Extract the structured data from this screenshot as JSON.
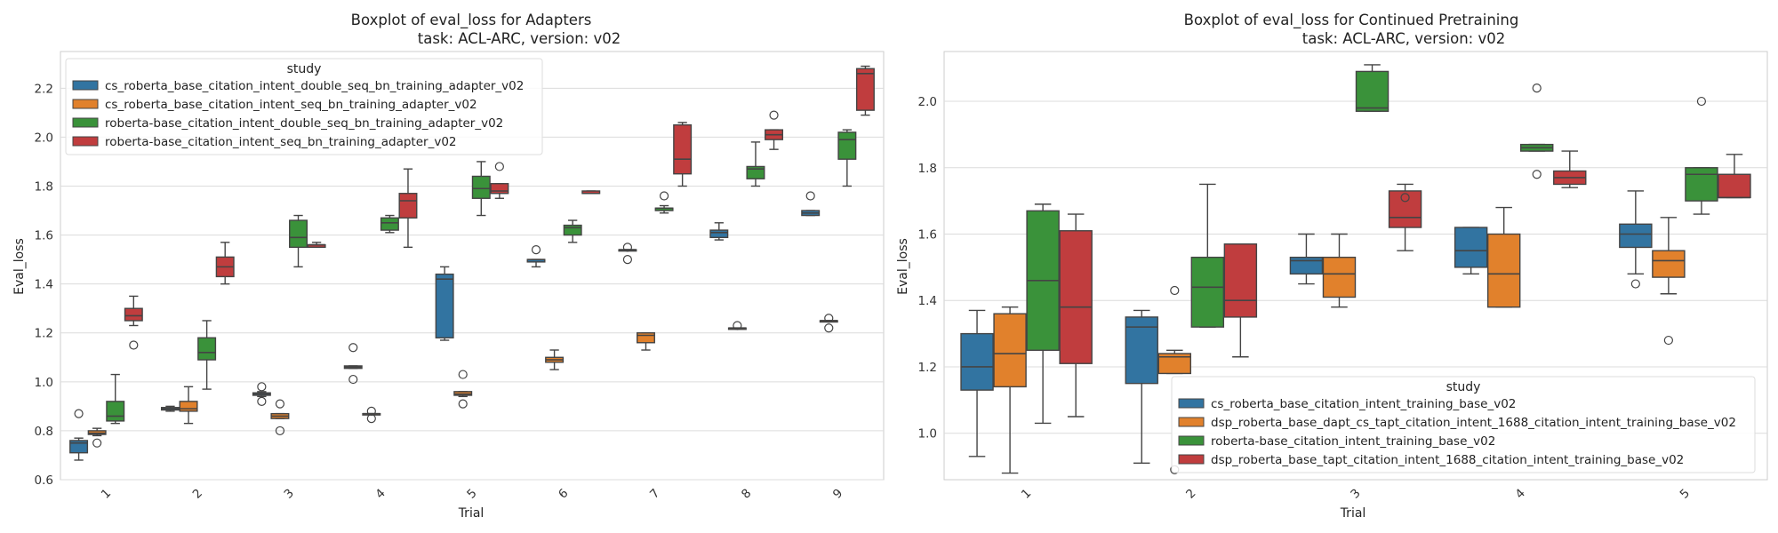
{
  "colors": {
    "s0": "#3274a1",
    "s1": "#e1812c",
    "s2": "#3a923a",
    "s3": "#c03d3e"
  },
  "chart_data": [
    {
      "type": "box",
      "title_line1": "Boxplot of eval_loss for Adapters",
      "title_line2": "task: ACL-ARC, version: v02",
      "xlabel": "Trial",
      "ylabel": "Eval_loss",
      "ylim": [
        0.6,
        2.35
      ],
      "yticks": [
        "0.6",
        "0.8",
        "1.0",
        "1.2",
        "1.4",
        "1.6",
        "1.8",
        "2.0",
        "2.2"
      ],
      "categories": [
        "1",
        "2",
        "3",
        "4",
        "5",
        "6",
        "7",
        "8",
        "9"
      ],
      "grid": true,
      "legend": {
        "title": "study",
        "position": "upper-left",
        "labels": [
          "cs_roberta_base_citation_intent_double_seq_bn_training_adapter_v02",
          "cs_roberta_base_citation_intent_seq_bn_training_adapter_v02",
          "roberta-base_citation_intent_double_seq_bn_training_adapter_v02",
          "roberta-base_citation_intent_seq_bn_training_adapter_v02"
        ]
      },
      "series": [
        {
          "color_key": "s0",
          "boxes": [
            {
              "min": 0.68,
              "q1": 0.71,
              "med": 0.75,
              "q3": 0.76,
              "max": 0.77,
              "fliers": [
                0.87
              ]
            },
            {
              "min": 0.88,
              "q1": 0.885,
              "med": 0.89,
              "q3": 0.895,
              "max": 0.9,
              "fliers": []
            },
            {
              "min": 0.94,
              "q1": 0.945,
              "med": 0.95,
              "q3": 0.955,
              "max": 0.96,
              "fliers": [
                0.92,
                0.98
              ]
            },
            {
              "min": 1.055,
              "q1": 1.055,
              "med": 1.06,
              "q3": 1.065,
              "max": 1.065,
              "fliers": [
                1.01,
                1.14
              ]
            },
            {
              "min": 1.17,
              "q1": 1.18,
              "med": 1.42,
              "q3": 1.44,
              "max": 1.47,
              "fliers": []
            },
            {
              "min": 1.47,
              "q1": 1.49,
              "med": 1.5,
              "q3": 1.5,
              "max": 1.5,
              "fliers": [
                1.54
              ]
            },
            {
              "min": 1.54,
              "q1": 1.54,
              "med": 1.54,
              "q3": 1.54,
              "max": 1.54,
              "fliers": [
                1.5,
                1.55
              ]
            },
            {
              "min": 1.58,
              "q1": 1.59,
              "med": 1.61,
              "q3": 1.62,
              "max": 1.65,
              "fliers": []
            },
            {
              "min": 1.68,
              "q1": 1.68,
              "med": 1.69,
              "q3": 1.7,
              "max": 1.7,
              "fliers": [
                1.76
              ]
            }
          ]
        },
        {
          "color_key": "s1",
          "boxes": [
            {
              "min": 0.78,
              "q1": 0.785,
              "med": 0.79,
              "q3": 0.8,
              "max": 0.81,
              "fliers": [
                0.75
              ]
            },
            {
              "min": 0.83,
              "q1": 0.88,
              "med": 0.89,
              "q3": 0.92,
              "max": 0.98,
              "fliers": []
            },
            {
              "min": 0.85,
              "q1": 0.85,
              "med": 0.86,
              "q3": 0.87,
              "max": 0.87,
              "fliers": [
                0.8,
                0.91
              ]
            },
            {
              "min": 0.87,
              "q1": 0.87,
              "med": 0.87,
              "q3": 0.87,
              "max": 0.87,
              "fliers": [
                0.85,
                0.88
              ]
            },
            {
              "min": 0.94,
              "q1": 0.945,
              "med": 0.95,
              "q3": 0.96,
              "max": 0.96,
              "fliers": [
                0.91,
                1.03
              ]
            },
            {
              "min": 1.05,
              "q1": 1.08,
              "med": 1.09,
              "q3": 1.1,
              "max": 1.13,
              "fliers": []
            },
            {
              "min": 1.13,
              "q1": 1.16,
              "med": 1.19,
              "q3": 1.2,
              "max": 1.2,
              "fliers": []
            },
            {
              "min": 1.22,
              "q1": 1.22,
              "med": 1.22,
              "q3": 1.22,
              "max": 1.22,
              "fliers": [
                1.23
              ]
            },
            {
              "min": 1.25,
              "q1": 1.25,
              "med": 1.25,
              "q3": 1.25,
              "max": 1.25,
              "fliers": [
                1.22,
                1.26
              ]
            }
          ]
        },
        {
          "color_key": "s2",
          "boxes": [
            {
              "min": 0.83,
              "q1": 0.84,
              "med": 0.86,
              "q3": 0.92,
              "max": 1.03,
              "fliers": []
            },
            {
              "min": 0.97,
              "q1": 1.09,
              "med": 1.12,
              "q3": 1.18,
              "max": 1.25,
              "fliers": []
            },
            {
              "min": 1.47,
              "q1": 1.55,
              "med": 1.59,
              "q3": 1.66,
              "max": 1.68,
              "fliers": []
            },
            {
              "min": 1.61,
              "q1": 1.62,
              "med": 1.65,
              "q3": 1.67,
              "max": 1.68,
              "fliers": []
            },
            {
              "min": 1.68,
              "q1": 1.75,
              "med": 1.79,
              "q3": 1.84,
              "max": 1.9,
              "fliers": []
            },
            {
              "min": 1.57,
              "q1": 1.6,
              "med": 1.63,
              "q3": 1.64,
              "max": 1.66,
              "fliers": []
            },
            {
              "min": 1.69,
              "q1": 1.7,
              "med": 1.71,
              "q3": 1.71,
              "max": 1.72,
              "fliers": [
                1.76
              ]
            },
            {
              "min": 1.8,
              "q1": 1.83,
              "med": 1.87,
              "q3": 1.88,
              "max": 1.98,
              "fliers": []
            },
            {
              "min": 1.8,
              "q1": 1.91,
              "med": 1.99,
              "q3": 2.02,
              "max": 2.03,
              "fliers": []
            }
          ]
        },
        {
          "color_key": "s3",
          "boxes": [
            {
              "min": 1.23,
              "q1": 1.25,
              "med": 1.27,
              "q3": 1.3,
              "max": 1.35,
              "fliers": [
                1.15
              ]
            },
            {
              "min": 1.4,
              "q1": 1.43,
              "med": 1.47,
              "q3": 1.51,
              "max": 1.57,
              "fliers": []
            },
            {
              "min": 1.55,
              "q1": 1.55,
              "med": 1.56,
              "q3": 1.56,
              "max": 1.57,
              "fliers": []
            },
            {
              "min": 1.55,
              "q1": 1.67,
              "med": 1.74,
              "q3": 1.77,
              "max": 1.87,
              "fliers": []
            },
            {
              "min": 1.75,
              "q1": 1.77,
              "med": 1.78,
              "q3": 1.81,
              "max": 1.81,
              "fliers": [
                1.88
              ]
            },
            {
              "min": 1.77,
              "q1": 1.77,
              "med": 1.77,
              "q3": 1.78,
              "max": 1.78,
              "fliers": []
            },
            {
              "min": 1.8,
              "q1": 1.85,
              "med": 1.91,
              "q3": 2.05,
              "max": 2.06,
              "fliers": []
            },
            {
              "min": 1.95,
              "q1": 1.99,
              "med": 2.01,
              "q3": 2.03,
              "max": 2.03,
              "fliers": [
                2.09
              ]
            },
            {
              "min": 2.09,
              "q1": 2.11,
              "med": 2.26,
              "q3": 2.28,
              "max": 2.29,
              "fliers": []
            }
          ]
        }
      ]
    },
    {
      "type": "box",
      "title_line1": "Boxplot of eval_loss for Continued Pretraining",
      "title_line2": "task: ACL-ARC, version: v02",
      "xlabel": "Trial",
      "ylabel": "Eval_loss",
      "ylim": [
        0.86,
        2.15
      ],
      "yticks": [
        "1.0",
        "1.2",
        "1.4",
        "1.6",
        "1.8",
        "2.0"
      ],
      "categories": [
        "1",
        "2",
        "3",
        "4",
        "5"
      ],
      "grid": true,
      "legend": {
        "title": "study",
        "position": "lower-right",
        "labels": [
          "cs_roberta_base_citation_intent_training_base_v02",
          "dsp_roberta_base_dapt_cs_tapt_citation_intent_1688_citation_intent_training_base_v02",
          "roberta-base_citation_intent_training_base_v02",
          "dsp_roberta_base_tapt_citation_intent_1688_citation_intent_training_base_v02"
        ]
      },
      "series": [
        {
          "color_key": "s0",
          "boxes": [
            {
              "min": 0.93,
              "q1": 1.13,
              "med": 1.2,
              "q3": 1.3,
              "max": 1.37,
              "fliers": []
            },
            {
              "min": 0.91,
              "q1": 1.15,
              "med": 1.32,
              "q3": 1.35,
              "max": 1.37,
              "fliers": []
            },
            {
              "min": 1.45,
              "q1": 1.48,
              "med": 1.52,
              "q3": 1.53,
              "max": 1.6,
              "fliers": []
            },
            {
              "min": 1.48,
              "q1": 1.5,
              "med": 1.55,
              "q3": 1.62,
              "max": 1.62,
              "fliers": []
            },
            {
              "min": 1.48,
              "q1": 1.56,
              "med": 1.6,
              "q3": 1.63,
              "max": 1.73,
              "fliers": [
                1.45
              ]
            }
          ]
        },
        {
          "color_key": "s1",
          "boxes": [
            {
              "min": 0.88,
              "q1": 1.14,
              "med": 1.24,
              "q3": 1.36,
              "max": 1.38,
              "fliers": []
            },
            {
              "min": 1.18,
              "q1": 1.18,
              "med": 1.23,
              "q3": 1.24,
              "max": 1.25,
              "fliers": [
                1.43,
                0.89
              ]
            },
            {
              "min": 1.38,
              "q1": 1.41,
              "med": 1.48,
              "q3": 1.53,
              "max": 1.6,
              "fliers": []
            },
            {
              "min": 1.38,
              "q1": 1.38,
              "med": 1.48,
              "q3": 1.6,
              "max": 1.68,
              "fliers": []
            },
            {
              "min": 1.42,
              "q1": 1.47,
              "med": 1.52,
              "q3": 1.55,
              "max": 1.65,
              "fliers": [
                1.28
              ]
            }
          ]
        },
        {
          "color_key": "s2",
          "boxes": [
            {
              "min": 1.03,
              "q1": 1.25,
              "med": 1.46,
              "q3": 1.67,
              "max": 1.69,
              "fliers": []
            },
            {
              "min": 1.32,
              "q1": 1.32,
              "med": 1.44,
              "q3": 1.53,
              "max": 1.75,
              "fliers": []
            },
            {
              "min": 1.97,
              "q1": 1.97,
              "med": 1.98,
              "q3": 2.09,
              "max": 2.11,
              "fliers": []
            },
            {
              "min": 1.85,
              "q1": 1.85,
              "med": 1.86,
              "q3": 1.87,
              "max": 1.87,
              "fliers": [
                2.04,
                1.78
              ]
            },
            {
              "min": 1.66,
              "q1": 1.7,
              "med": 1.78,
              "q3": 1.8,
              "max": 1.8,
              "fliers": [
                2.0
              ]
            }
          ]
        },
        {
          "color_key": "s3",
          "boxes": [
            {
              "min": 1.05,
              "q1": 1.21,
              "med": 1.38,
              "q3": 1.61,
              "max": 1.66,
              "fliers": []
            },
            {
              "min": 1.23,
              "q1": 1.35,
              "med": 1.4,
              "q3": 1.57,
              "max": 1.57,
              "fliers": []
            },
            {
              "min": 1.55,
              "q1": 1.62,
              "med": 1.65,
              "q3": 1.73,
              "max": 1.75,
              "fliers": [
                1.71
              ]
            },
            {
              "min": 1.74,
              "q1": 1.75,
              "med": 1.77,
              "q3": 1.79,
              "max": 1.85,
              "fliers": []
            },
            {
              "min": 1.71,
              "q1": 1.71,
              "med": 1.71,
              "q3": 1.78,
              "max": 1.84,
              "fliers": []
            }
          ]
        }
      ]
    }
  ]
}
